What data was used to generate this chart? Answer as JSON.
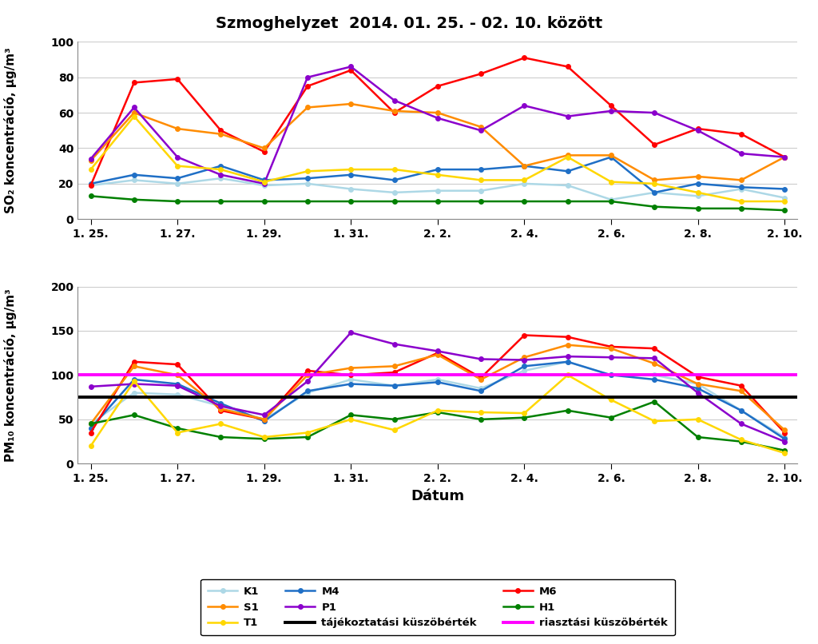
{
  "title": "Szmoghelyzet  2014. 01. 25. - 02. 10. között",
  "xlabel": "Dátum",
  "ylabel_top": "SO₂ koncentráció, μg/m³",
  "ylabel_bottom": "PM₁₀ koncentráció, μg/m³",
  "xtick_labels": [
    "1. 25.",
    "1. 27.",
    "1. 29.",
    "1. 31.",
    "2. 2.",
    "2. 4.",
    "2. 6.",
    "2. 8.",
    "2. 10."
  ],
  "x": [
    0,
    1,
    2,
    3,
    4,
    5,
    6,
    7,
    8,
    9,
    10,
    11,
    12,
    13,
    14,
    15,
    16
  ],
  "xtick_positions": [
    0,
    2,
    4,
    6,
    8,
    10,
    12,
    14,
    16
  ],
  "so2": {
    "K1": [
      19,
      22,
      20,
      23,
      19,
      20,
      17,
      15,
      16,
      16,
      20,
      19,
      11,
      15,
      13,
      17,
      12
    ],
    "M4": [
      20,
      25,
      23,
      30,
      22,
      23,
      25,
      22,
      28,
      28,
      30,
      27,
      35,
      15,
      20,
      18,
      17
    ],
    "M6": [
      19,
      77,
      79,
      50,
      38,
      75,
      84,
      60,
      75,
      82,
      91,
      86,
      64,
      42,
      51,
      48,
      35
    ],
    "S1": [
      33,
      60,
      51,
      48,
      40,
      63,
      65,
      61,
      60,
      52,
      30,
      36,
      36,
      22,
      24,
      22,
      35
    ],
    "P1": [
      34,
      63,
      35,
      25,
      20,
      80,
      86,
      67,
      57,
      50,
      64,
      58,
      61,
      60,
      50,
      37,
      35
    ],
    "H1": [
      13,
      11,
      10,
      10,
      10,
      10,
      10,
      10,
      10,
      10,
      10,
      10,
      10,
      7,
      6,
      6,
      5
    ],
    "T1": [
      28,
      58,
      30,
      28,
      21,
      27,
      28,
      28,
      25,
      22,
      22,
      35,
      21,
      20,
      15,
      10,
      10
    ]
  },
  "pm10": {
    "K1": [
      45,
      80,
      78,
      65,
      50,
      80,
      95,
      88,
      95,
      85,
      105,
      115,
      100,
      100,
      90,
      60,
      30
    ],
    "M4": [
      40,
      95,
      90,
      68,
      48,
      82,
      90,
      88,
      92,
      82,
      110,
      115,
      100,
      95,
      85,
      60,
      28
    ],
    "M6": [
      35,
      115,
      112,
      60,
      50,
      105,
      100,
      103,
      125,
      97,
      145,
      143,
      132,
      130,
      98,
      88,
      35
    ],
    "S1": [
      45,
      110,
      100,
      62,
      50,
      100,
      108,
      110,
      123,
      95,
      120,
      134,
      130,
      113,
      90,
      82,
      38
    ],
    "P1": [
      87,
      90,
      88,
      65,
      55,
      93,
      148,
      135,
      127,
      118,
      117,
      121,
      120,
      119,
      80,
      45,
      25
    ],
    "H1": [
      45,
      55,
      40,
      30,
      28,
      30,
      55,
      50,
      58,
      50,
      52,
      60,
      52,
      70,
      30,
      25,
      15
    ],
    "T1": [
      20,
      93,
      35,
      45,
      30,
      35,
      50,
      38,
      60,
      58,
      57,
      100,
      72,
      48,
      50,
      27,
      12
    ]
  },
  "colors": {
    "K1": "#ADD8E6",
    "M4": "#1F6FC6",
    "M6": "#FF0000",
    "S1": "#FF8C00",
    "P1": "#8B00CC",
    "H1": "#008000",
    "T1": "#FFD700"
  },
  "threshold_black": 75,
  "threshold_magenta": 100,
  "so2_ylim": [
    0,
    100
  ],
  "pm10_ylim": [
    0,
    200
  ],
  "so2_yticks": [
    0,
    20,
    40,
    60,
    80,
    100
  ],
  "pm10_yticks": [
    0,
    50,
    100,
    150,
    200
  ]
}
